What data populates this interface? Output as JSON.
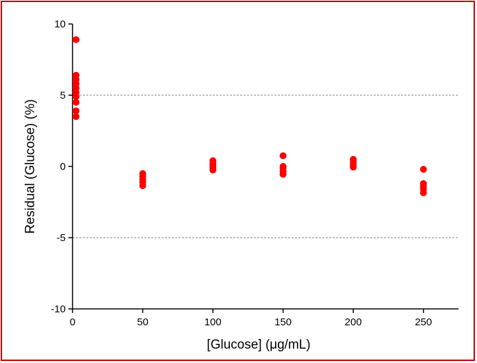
{
  "chart_data": {
    "type": "scatter",
    "xlabel": "[Glucose] (μg/mL)",
    "ylabel": "Residual (Glucose) (%)",
    "xlim": [
      0,
      275
    ],
    "ylim": [
      -10,
      10
    ],
    "x_ticks": [
      0,
      50,
      100,
      150,
      200,
      250
    ],
    "y_ticks": [
      -10,
      -5,
      0,
      5,
      10
    ],
    "x_tick_labels": [
      "0",
      "50",
      "100",
      "150",
      "200",
      "250"
    ],
    "y_tick_labels": [
      "-10",
      "-5",
      "0",
      "5",
      "10"
    ],
    "reference_lines": [
      5,
      -5
    ],
    "grid": false,
    "marker_color": "#ff0000",
    "points": [
      {
        "x": 2.5,
        "y": 8.9
      },
      {
        "x": 2.5,
        "y": 6.4
      },
      {
        "x": 2.5,
        "y": 6.1
      },
      {
        "x": 2.5,
        "y": 5.8
      },
      {
        "x": 2.5,
        "y": 5.5
      },
      {
        "x": 2.5,
        "y": 5.2
      },
      {
        "x": 2.5,
        "y": 4.9
      },
      {
        "x": 2.5,
        "y": 4.5
      },
      {
        "x": 2.5,
        "y": 3.9
      },
      {
        "x": 2.5,
        "y": 3.5
      },
      {
        "x": 50,
        "y": -0.5
      },
      {
        "x": 50,
        "y": -0.7
      },
      {
        "x": 50,
        "y": -0.9
      },
      {
        "x": 50,
        "y": -1.1
      },
      {
        "x": 50,
        "y": -1.35
      },
      {
        "x": 100,
        "y": 0.4
      },
      {
        "x": 100,
        "y": 0.2
      },
      {
        "x": 100,
        "y": 0.05
      },
      {
        "x": 100,
        "y": -0.1
      },
      {
        "x": 100,
        "y": -0.25
      },
      {
        "x": 150,
        "y": 0.75
      },
      {
        "x": 150,
        "y": 0.0
      },
      {
        "x": 150,
        "y": -0.15
      },
      {
        "x": 150,
        "y": -0.35
      },
      {
        "x": 150,
        "y": -0.55
      },
      {
        "x": 200,
        "y": 0.5
      },
      {
        "x": 200,
        "y": 0.3
      },
      {
        "x": 200,
        "y": 0.1
      },
      {
        "x": 200,
        "y": -0.05
      },
      {
        "x": 250,
        "y": -0.2
      },
      {
        "x": 250,
        "y": -1.2
      },
      {
        "x": 250,
        "y": -1.4
      },
      {
        "x": 250,
        "y": -1.6
      },
      {
        "x": 250,
        "y": -1.85
      }
    ]
  }
}
